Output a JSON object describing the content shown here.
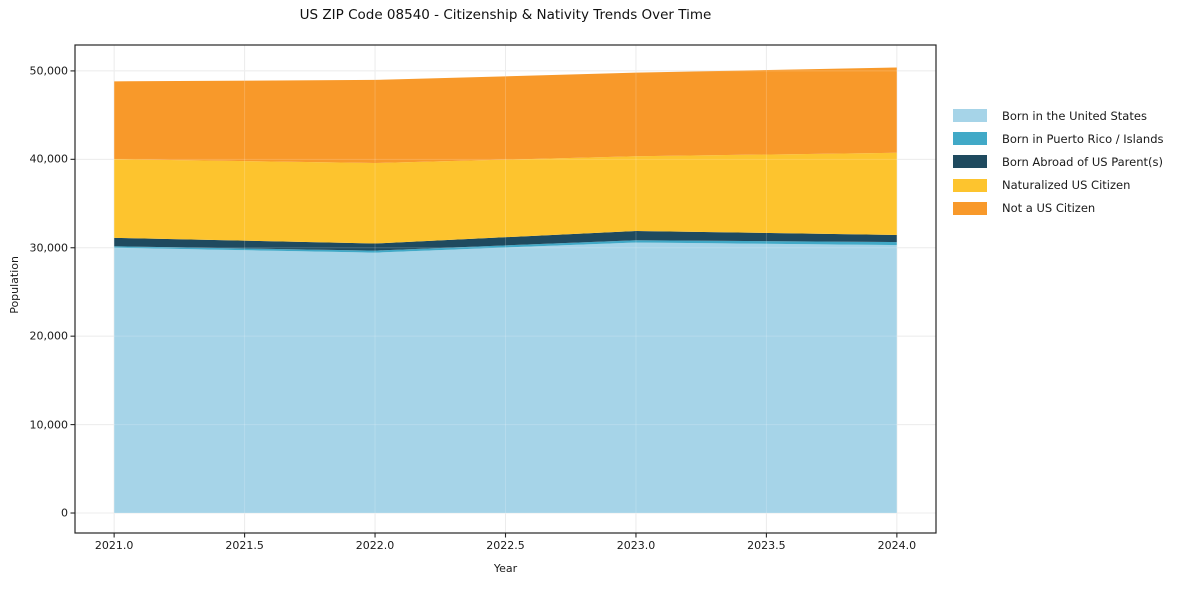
{
  "chart_data": {
    "type": "area",
    "stacked": true,
    "title": "US ZIP Code 08540 - Citizenship & Nativity Trends Over Time",
    "xlabel": "Year",
    "ylabel": "Population",
    "x": [
      2021,
      2022,
      2023,
      2024
    ],
    "series": [
      {
        "name": "Born in the United States",
        "color": "#a6d4e8",
        "values": [
          30000,
          29450,
          30600,
          30300
        ]
      },
      {
        "name": "Born in Puerto Rico / Islands",
        "color": "#41a9c7",
        "values": [
          170,
          230,
          250,
          340
        ]
      },
      {
        "name": "Born Abroad of US Parent(s)",
        "color": "#1f4a5f",
        "values": [
          950,
          800,
          1050,
          800
        ]
      },
      {
        "name": "Naturalized US Citizen",
        "color": "#fdc42e",
        "values": [
          8900,
          9100,
          8450,
          9300
        ]
      },
      {
        "name": "Not a US Citizen",
        "color": "#f8992a",
        "values": [
          8800,
          9400,
          9450,
          9650
        ]
      }
    ],
    "x_ticks": [
      "2021.0",
      "2021.5",
      "2022.0",
      "2022.5",
      "2023.0",
      "2023.5",
      "2024.0"
    ],
    "x_tick_values": [
      2021,
      2021.5,
      2022,
      2022.5,
      2023,
      2023.5,
      2024
    ],
    "y_ticks": [
      "0",
      "10,000",
      "20,000",
      "30,000",
      "40,000",
      "50,000"
    ],
    "y_tick_values": [
      0,
      10000,
      20000,
      30000,
      40000,
      50000
    ],
    "xlim": [
      2020.85,
      2024.15
    ],
    "ylim": [
      -2260,
      52930
    ],
    "grid": true,
    "legend_position": "right",
    "frame_color": "#262626",
    "grid_color": "#e8e8e8"
  }
}
